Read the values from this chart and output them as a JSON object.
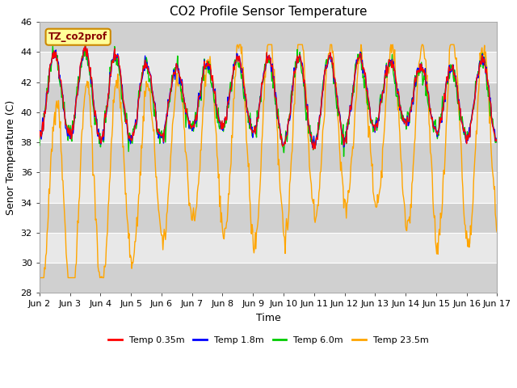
{
  "title": "CO2 Profile Sensor Temperature",
  "ylabel": "Senor Temperature (C)",
  "xlabel": "Time",
  "legend_label": "TZ_co2prof",
  "ylim": [
    28,
    46
  ],
  "series_labels": [
    "Temp 0.35m",
    "Temp 1.8m",
    "Temp 6.0m",
    "Temp 23.5m"
  ],
  "series_colors": [
    "#ff0000",
    "#0000ff",
    "#00cc00",
    "#ffa500"
  ],
  "xtick_labels": [
    "Jun 2",
    "Jun 3",
    "Jun 4",
    "Jun 5",
    "Jun 6",
    "Jun 7",
    "Jun 8",
    "Jun 9",
    "Jun 10",
    "Jun 11",
    "Jun 12",
    "Jun 13",
    "Jun 14",
    "Jun 15",
    "Jun 16",
    "Jun 17"
  ],
  "ytick_values": [
    28,
    30,
    32,
    34,
    36,
    38,
    40,
    42,
    44,
    46
  ],
  "background_color": "#ffffff",
  "plot_bg_color": "#e0e0e0",
  "band_light": "#e8e8e8",
  "band_dark": "#d0d0d0",
  "legend_bg": "#ffff99",
  "legend_border": "#cc8800",
  "legend_text_color": "#880000",
  "title_fontsize": 11,
  "axis_fontsize": 9,
  "tick_fontsize": 8,
  "linewidth": 1.0,
  "n_days": 15,
  "n_per_day": 48
}
